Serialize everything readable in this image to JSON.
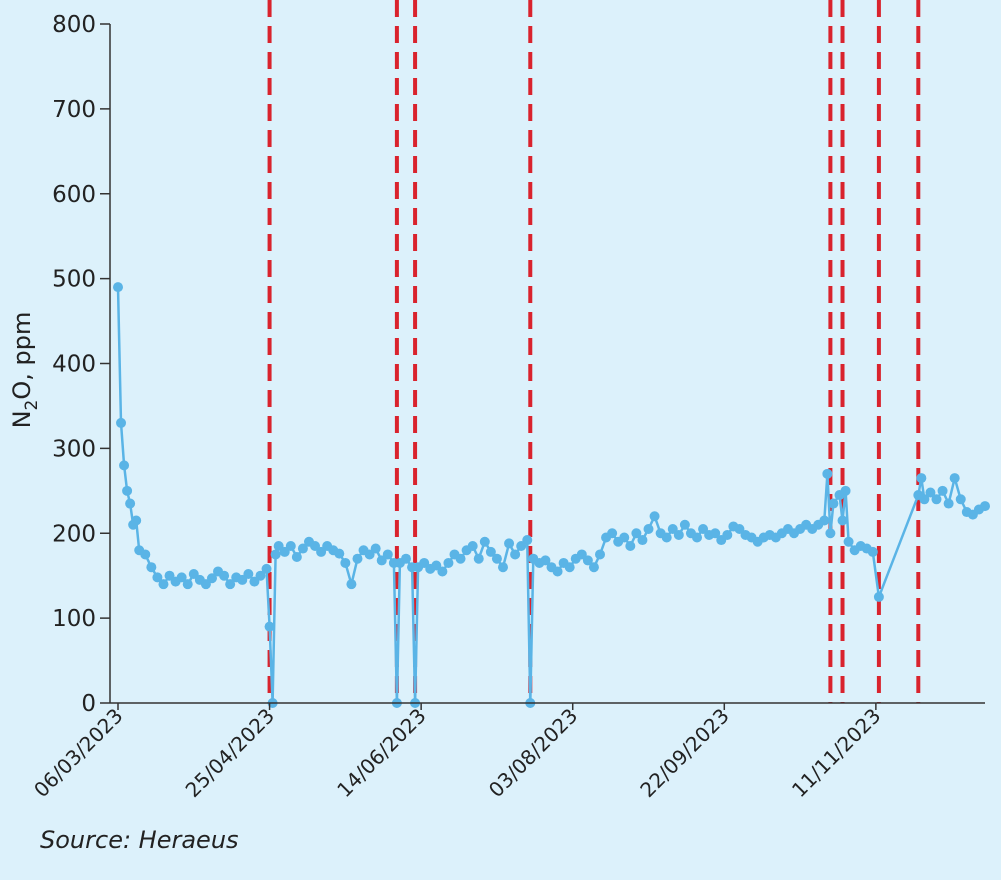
{
  "chart_data": {
    "type": "line",
    "ylabel_main": "N",
    "ylabel_sub": "2",
    "ylabel_rest": "O, ppm",
    "ylim": [
      0,
      800
    ],
    "yticks": [
      0,
      100,
      200,
      300,
      400,
      500,
      600,
      700,
      800
    ],
    "xlim": [
      "2023-03-06",
      "2023-12-17"
    ],
    "xticks": [
      {
        "date": "2023-03-06",
        "label": "06/03/2023"
      },
      {
        "date": "2023-04-25",
        "label": "25/04/2023"
      },
      {
        "date": "2023-06-14",
        "label": "14/06/2023"
      },
      {
        "date": "2023-08-03",
        "label": "03/08/2023"
      },
      {
        "date": "2023-09-22",
        "label": "22/09/2023"
      },
      {
        "date": "2023-11-11",
        "label": "11/11/2023"
      }
    ],
    "event_lines": [
      "2023-04-25",
      "2023-06-06",
      "2023-06-12",
      "2023-07-20",
      "2023-10-27",
      "2023-10-31",
      "2023-11-12",
      "2023-11-25"
    ],
    "event_line_color": "#d9232d",
    "series_color": "#5ab4e6",
    "grid": false,
    "series": [
      {
        "points": [
          [
            "2023-03-06",
            490
          ],
          [
            "2023-03-07",
            330
          ],
          [
            "2023-03-08",
            280
          ],
          [
            "2023-03-09",
            250
          ],
          [
            "2023-03-10",
            235
          ],
          [
            "2023-03-11",
            210
          ],
          [
            "2023-03-12",
            215
          ],
          [
            "2023-03-13",
            180
          ],
          [
            "2023-03-15",
            175
          ],
          [
            "2023-03-17",
            160
          ],
          [
            "2023-03-19",
            148
          ],
          [
            "2023-03-21",
            140
          ],
          [
            "2023-03-23",
            150
          ],
          [
            "2023-03-25",
            143
          ],
          [
            "2023-03-27",
            148
          ],
          [
            "2023-03-29",
            140
          ],
          [
            "2023-03-31",
            152
          ],
          [
            "2023-04-02",
            145
          ],
          [
            "2023-04-04",
            140
          ],
          [
            "2023-04-06",
            147
          ],
          [
            "2023-04-08",
            155
          ],
          [
            "2023-04-10",
            150
          ],
          [
            "2023-04-12",
            140
          ],
          [
            "2023-04-14",
            148
          ],
          [
            "2023-04-16",
            145
          ],
          [
            "2023-04-18",
            152
          ],
          [
            "2023-04-20",
            143
          ],
          [
            "2023-04-22",
            150
          ],
          [
            "2023-04-24",
            158
          ],
          [
            "2023-04-25",
            90
          ],
          [
            "2023-04-26",
            0
          ],
          [
            "2023-04-27",
            175
          ],
          [
            "2023-04-28",
            185
          ],
          [
            "2023-04-30",
            178
          ],
          [
            "2023-05-02",
            185
          ],
          [
            "2023-05-04",
            172
          ],
          [
            "2023-05-06",
            182
          ],
          [
            "2023-05-08",
            190
          ],
          [
            "2023-05-10",
            185
          ],
          [
            "2023-05-12",
            178
          ],
          [
            "2023-05-14",
            185
          ],
          [
            "2023-05-16",
            180
          ],
          [
            "2023-05-18",
            176
          ],
          [
            "2023-05-20",
            165
          ],
          [
            "2023-05-22",
            140
          ],
          [
            "2023-05-24",
            170
          ],
          [
            "2023-05-26",
            180
          ],
          [
            "2023-05-28",
            175
          ],
          [
            "2023-05-30",
            182
          ],
          [
            "2023-06-01",
            168
          ],
          [
            "2023-06-03",
            175
          ],
          [
            "2023-06-05",
            165
          ],
          [
            "2023-06-06",
            0
          ],
          [
            "2023-06-07",
            165
          ],
          [
            "2023-06-09",
            170
          ],
          [
            "2023-06-11",
            160
          ],
          [
            "2023-06-12",
            0
          ],
          [
            "2023-06-13",
            160
          ],
          [
            "2023-06-15",
            165
          ],
          [
            "2023-06-17",
            158
          ],
          [
            "2023-06-19",
            162
          ],
          [
            "2023-06-21",
            155
          ],
          [
            "2023-06-23",
            165
          ],
          [
            "2023-06-25",
            175
          ],
          [
            "2023-06-27",
            170
          ],
          [
            "2023-06-29",
            180
          ],
          [
            "2023-07-01",
            185
          ],
          [
            "2023-07-03",
            170
          ],
          [
            "2023-07-05",
            190
          ],
          [
            "2023-07-07",
            178
          ],
          [
            "2023-07-09",
            170
          ],
          [
            "2023-07-11",
            160
          ],
          [
            "2023-07-13",
            188
          ],
          [
            "2023-07-15",
            175
          ],
          [
            "2023-07-17",
            185
          ],
          [
            "2023-07-19",
            192
          ],
          [
            "2023-07-20",
            0
          ],
          [
            "2023-07-21",
            170
          ],
          [
            "2023-07-23",
            165
          ],
          [
            "2023-07-25",
            168
          ],
          [
            "2023-07-27",
            160
          ],
          [
            "2023-07-29",
            155
          ],
          [
            "2023-07-31",
            165
          ],
          [
            "2023-08-02",
            160
          ],
          [
            "2023-08-04",
            170
          ],
          [
            "2023-08-06",
            175
          ],
          [
            "2023-08-08",
            168
          ],
          [
            "2023-08-10",
            160
          ],
          [
            "2023-08-12",
            175
          ],
          [
            "2023-08-14",
            195
          ],
          [
            "2023-08-16",
            200
          ],
          [
            "2023-08-18",
            190
          ],
          [
            "2023-08-20",
            195
          ],
          [
            "2023-08-22",
            185
          ],
          [
            "2023-08-24",
            200
          ],
          [
            "2023-08-26",
            192
          ],
          [
            "2023-08-28",
            205
          ],
          [
            "2023-08-30",
            220
          ],
          [
            "2023-09-01",
            200
          ],
          [
            "2023-09-03",
            195
          ],
          [
            "2023-09-05",
            205
          ],
          [
            "2023-09-07",
            198
          ],
          [
            "2023-09-09",
            210
          ],
          [
            "2023-09-11",
            200
          ],
          [
            "2023-09-13",
            195
          ],
          [
            "2023-09-15",
            205
          ],
          [
            "2023-09-17",
            198
          ],
          [
            "2023-09-19",
            200
          ],
          [
            "2023-09-21",
            192
          ],
          [
            "2023-09-23",
            198
          ],
          [
            "2023-09-25",
            208
          ],
          [
            "2023-09-27",
            205
          ],
          [
            "2023-09-29",
            198
          ],
          [
            "2023-10-01",
            195
          ],
          [
            "2023-10-03",
            190
          ],
          [
            "2023-10-05",
            195
          ],
          [
            "2023-10-07",
            198
          ],
          [
            "2023-10-09",
            195
          ],
          [
            "2023-10-11",
            200
          ],
          [
            "2023-10-13",
            205
          ],
          [
            "2023-10-15",
            200
          ],
          [
            "2023-10-17",
            205
          ],
          [
            "2023-10-19",
            210
          ],
          [
            "2023-10-21",
            205
          ],
          [
            "2023-10-23",
            210
          ],
          [
            "2023-10-25",
            215
          ],
          [
            "2023-10-26",
            270
          ],
          [
            "2023-10-27",
            200
          ],
          [
            "2023-10-28",
            235
          ],
          [
            "2023-10-30",
            245
          ],
          [
            "2023-10-31",
            215
          ],
          [
            "2023-11-01",
            250
          ],
          [
            "2023-11-02",
            190
          ],
          [
            "2023-11-04",
            180
          ],
          [
            "2023-11-06",
            185
          ],
          [
            "2023-11-08",
            182
          ],
          [
            "2023-11-10",
            178
          ],
          [
            "2023-11-12",
            125
          ],
          [
            "2023-11-25",
            245
          ],
          [
            "2023-11-26",
            265
          ],
          [
            "2023-11-27",
            240
          ],
          [
            "2023-11-29",
            248
          ],
          [
            "2023-12-01",
            240
          ],
          [
            "2023-12-03",
            250
          ],
          [
            "2023-12-05",
            235
          ],
          [
            "2023-12-07",
            265
          ],
          [
            "2023-12-09",
            240
          ],
          [
            "2023-12-11",
            225
          ],
          [
            "2023-12-13",
            222
          ],
          [
            "2023-12-15",
            228
          ],
          [
            "2023-12-17",
            232
          ]
        ]
      }
    ]
  },
  "source": "Source: Heraeus"
}
